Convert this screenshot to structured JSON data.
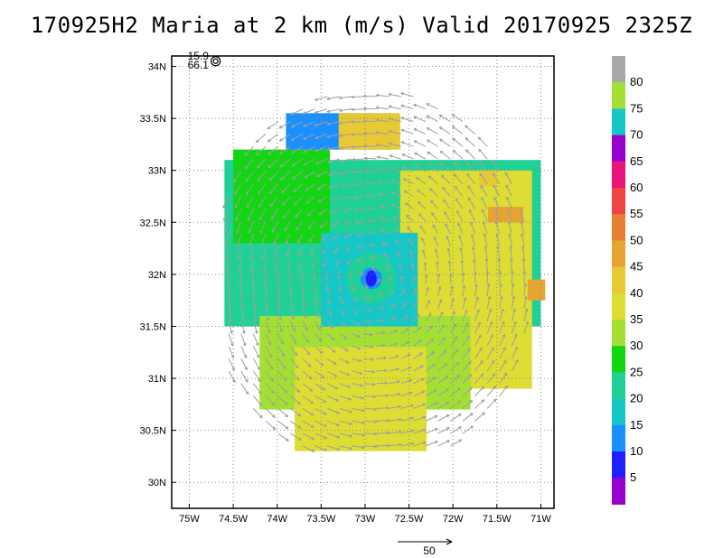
{
  "title": "170925H2 Maria at 2 km (m/s) Valid 20170925 2325Z",
  "colors": {
    "c5": "#9900cc",
    "c10": "#2020ff",
    "c15": "#1890ff",
    "c20": "#17c7c7",
    "c25": "#1fd196",
    "c30": "#11d611",
    "c35": "#a3e033",
    "c40": "#dddd33",
    "c45": "#e8c833",
    "c50": "#e6a533",
    "c55": "#e88033",
    "c60": "#ee4444",
    "c65": "#e8157a",
    "c70": "#9900cc",
    "c75": "#17c7c7",
    "c80": "#a3e033",
    "c85": "#a8a8a8",
    "arrow": "#9f9f9f"
  },
  "storm_marker": {
    "lat": 34.05,
    "lon": -74.7,
    "label_top": "15.9",
    "label_bottom": "66.1"
  },
  "reference_vector": {
    "label": "50",
    "value": 50
  },
  "chart_data": {
    "type": "heatmap",
    "title": "170925H2 Maria at 2 km (m/s) Valid 20170925 2325Z",
    "quantity": "wind speed (m/s)",
    "xlim": [
      -75.2,
      -70.85
    ],
    "ylim": [
      29.75,
      34.1
    ],
    "x_ticks": [
      {
        "value": -75.0,
        "label": "75W"
      },
      {
        "value": -74.5,
        "label": "74.5W"
      },
      {
        "value": -74.0,
        "label": "74W"
      },
      {
        "value": -73.5,
        "label": "73.5W"
      },
      {
        "value": -73.0,
        "label": "73W"
      },
      {
        "value": -72.5,
        "label": "72.5W"
      },
      {
        "value": -72.0,
        "label": "72W"
      },
      {
        "value": -71.5,
        "label": "71.5W"
      },
      {
        "value": -71.0,
        "label": "71W"
      }
    ],
    "y_ticks": [
      {
        "value": 30.0,
        "label": "30N"
      },
      {
        "value": 30.5,
        "label": "30.5N"
      },
      {
        "value": 31.0,
        "label": "31N"
      },
      {
        "value": 31.5,
        "label": "31.5N"
      },
      {
        "value": 32.0,
        "label": "32N"
      },
      {
        "value": 32.5,
        "label": "32.5N"
      },
      {
        "value": 33.0,
        "label": "33N"
      },
      {
        "value": 33.5,
        "label": "33.5N"
      },
      {
        "value": 34.0,
        "label": "34N"
      }
    ],
    "grid": true,
    "center": {
      "lat": 31.96,
      "lon": -72.93
    },
    "colorbar": {
      "labels": [
        "5",
        "10",
        "15",
        "20",
        "25",
        "30",
        "35",
        "40",
        "45",
        "50",
        "55",
        "60",
        "65",
        "70",
        "75",
        "80"
      ],
      "levels": [
        5,
        10,
        15,
        20,
        25,
        30,
        35,
        40,
        45,
        50,
        55,
        60,
        65,
        70,
        75,
        80
      ]
    },
    "regions": [
      {
        "lon0": -74.6,
        "lon1": -71.0,
        "lat0": 31.5,
        "lat1": 33.1,
        "value": 25
      },
      {
        "lon0": -72.6,
        "lon1": -71.1,
        "lat0": 30.9,
        "lat1": 33.0,
        "value": 40
      },
      {
        "lon0": -74.5,
        "lon1": -73.4,
        "lat0": 32.3,
        "lat1": 33.2,
        "value": 30
      },
      {
        "lon0": -73.9,
        "lon1": -72.7,
        "lat0": 33.2,
        "lat1": 33.55,
        "value": 15
      },
      {
        "lon0": -73.3,
        "lon1": -72.6,
        "lat0": 33.2,
        "lat1": 33.55,
        "value": 45
      },
      {
        "lon0": -74.2,
        "lon1": -71.8,
        "lat0": 30.7,
        "lat1": 31.6,
        "value": 35
      },
      {
        "lon0": -73.8,
        "lon1": -72.3,
        "lat0": 30.3,
        "lat1": 31.3,
        "value": 40
      },
      {
        "lon0": -73.5,
        "lon1": -72.4,
        "lat0": 31.5,
        "lat1": 32.4,
        "value": 20
      },
      {
        "lon0": -73.05,
        "lon1": -72.8,
        "lat0": 31.88,
        "lat1": 32.05,
        "value": 10
      },
      {
        "lon0": -71.6,
        "lon1": -71.2,
        "lat0": 32.5,
        "lat1": 32.65,
        "value": 50
      },
      {
        "lon0": -71.15,
        "lon1": -70.95,
        "lat0": 31.75,
        "lat1": 31.95,
        "value": 50
      },
      {
        "lon0": -71.7,
        "lon1": -71.5,
        "lat0": 32.85,
        "lat1": 33.0,
        "value": 45
      }
    ]
  }
}
